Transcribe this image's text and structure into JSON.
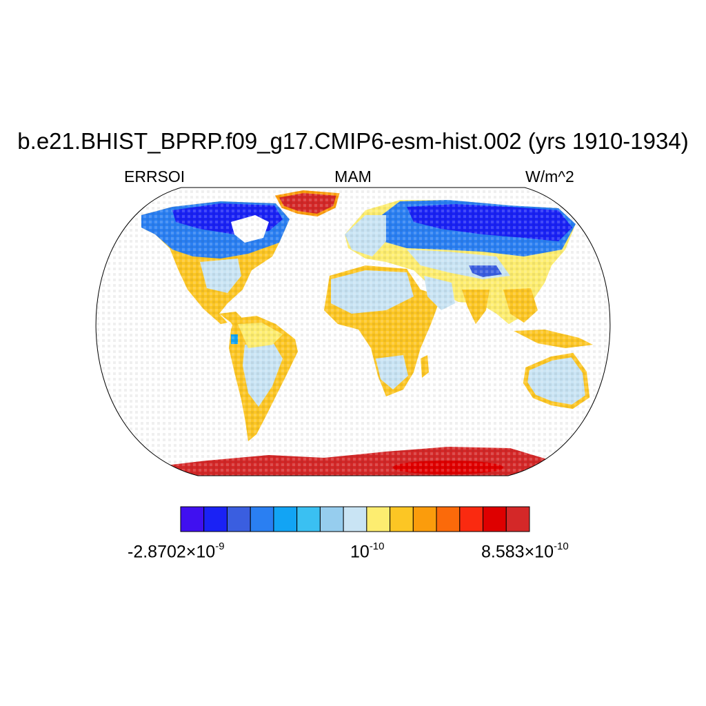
{
  "title": "b.e21.BHIST_BPRP.f09_g17.CMIP6-esm-hist.002 (yrs 1910-1934)",
  "left_string": "ERRSOI",
  "center_string": "MAM",
  "right_string": "W/m^2",
  "colorbar": {
    "colors": [
      "#4010f0",
      "#1a22f5",
      "#3a5ee0",
      "#2a7ff2",
      "#12a4f4",
      "#3ac0f2",
      "#96cdee",
      "#c9e4f4",
      "#fded70",
      "#fcc624",
      "#fb9c0c",
      "#fb6a0a",
      "#fa2a10",
      "#de0000",
      "#d42828"
    ],
    "min_mantissa": "-2.8702",
    "min_exp": "-9",
    "mid_mantissa": "10",
    "mid_exp": "-10",
    "max_mantissa": "8.583",
    "max_exp": "-10",
    "times": "×10"
  }
}
